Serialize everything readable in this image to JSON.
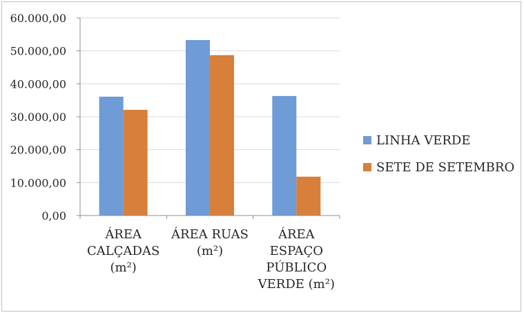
{
  "chart_data": {
    "type": "bar",
    "title": "",
    "xlabel": "",
    "ylabel": "",
    "ylim": [
      0,
      60000
    ],
    "y_ticks": [
      0,
      10000,
      20000,
      30000,
      40000,
      50000,
      60000
    ],
    "y_tick_labels": [
      "0,00",
      "10.000,00",
      "20.000,00",
      "30.000,00",
      "40.000,00",
      "50.000,00",
      "60.000,00"
    ],
    "categories": [
      [
        "ÁREA",
        "CALÇADAS",
        "(m²)"
      ],
      [
        "ÁREA RUAS",
        "(m²)"
      ],
      [
        "ÁREA",
        "ESPAÇO",
        "PÚBLICO",
        "VERDE (m²)"
      ]
    ],
    "series": [
      {
        "name": "LINHA VERDE",
        "color": "#6f9bd6",
        "values": [
          36100,
          53300,
          36300
        ]
      },
      {
        "name": "SETE DE SETEMBRO",
        "color": "#d77f3b",
        "values": [
          32100,
          48700,
          11800
        ]
      }
    ],
    "grid": true,
    "legend_position": "right"
  }
}
